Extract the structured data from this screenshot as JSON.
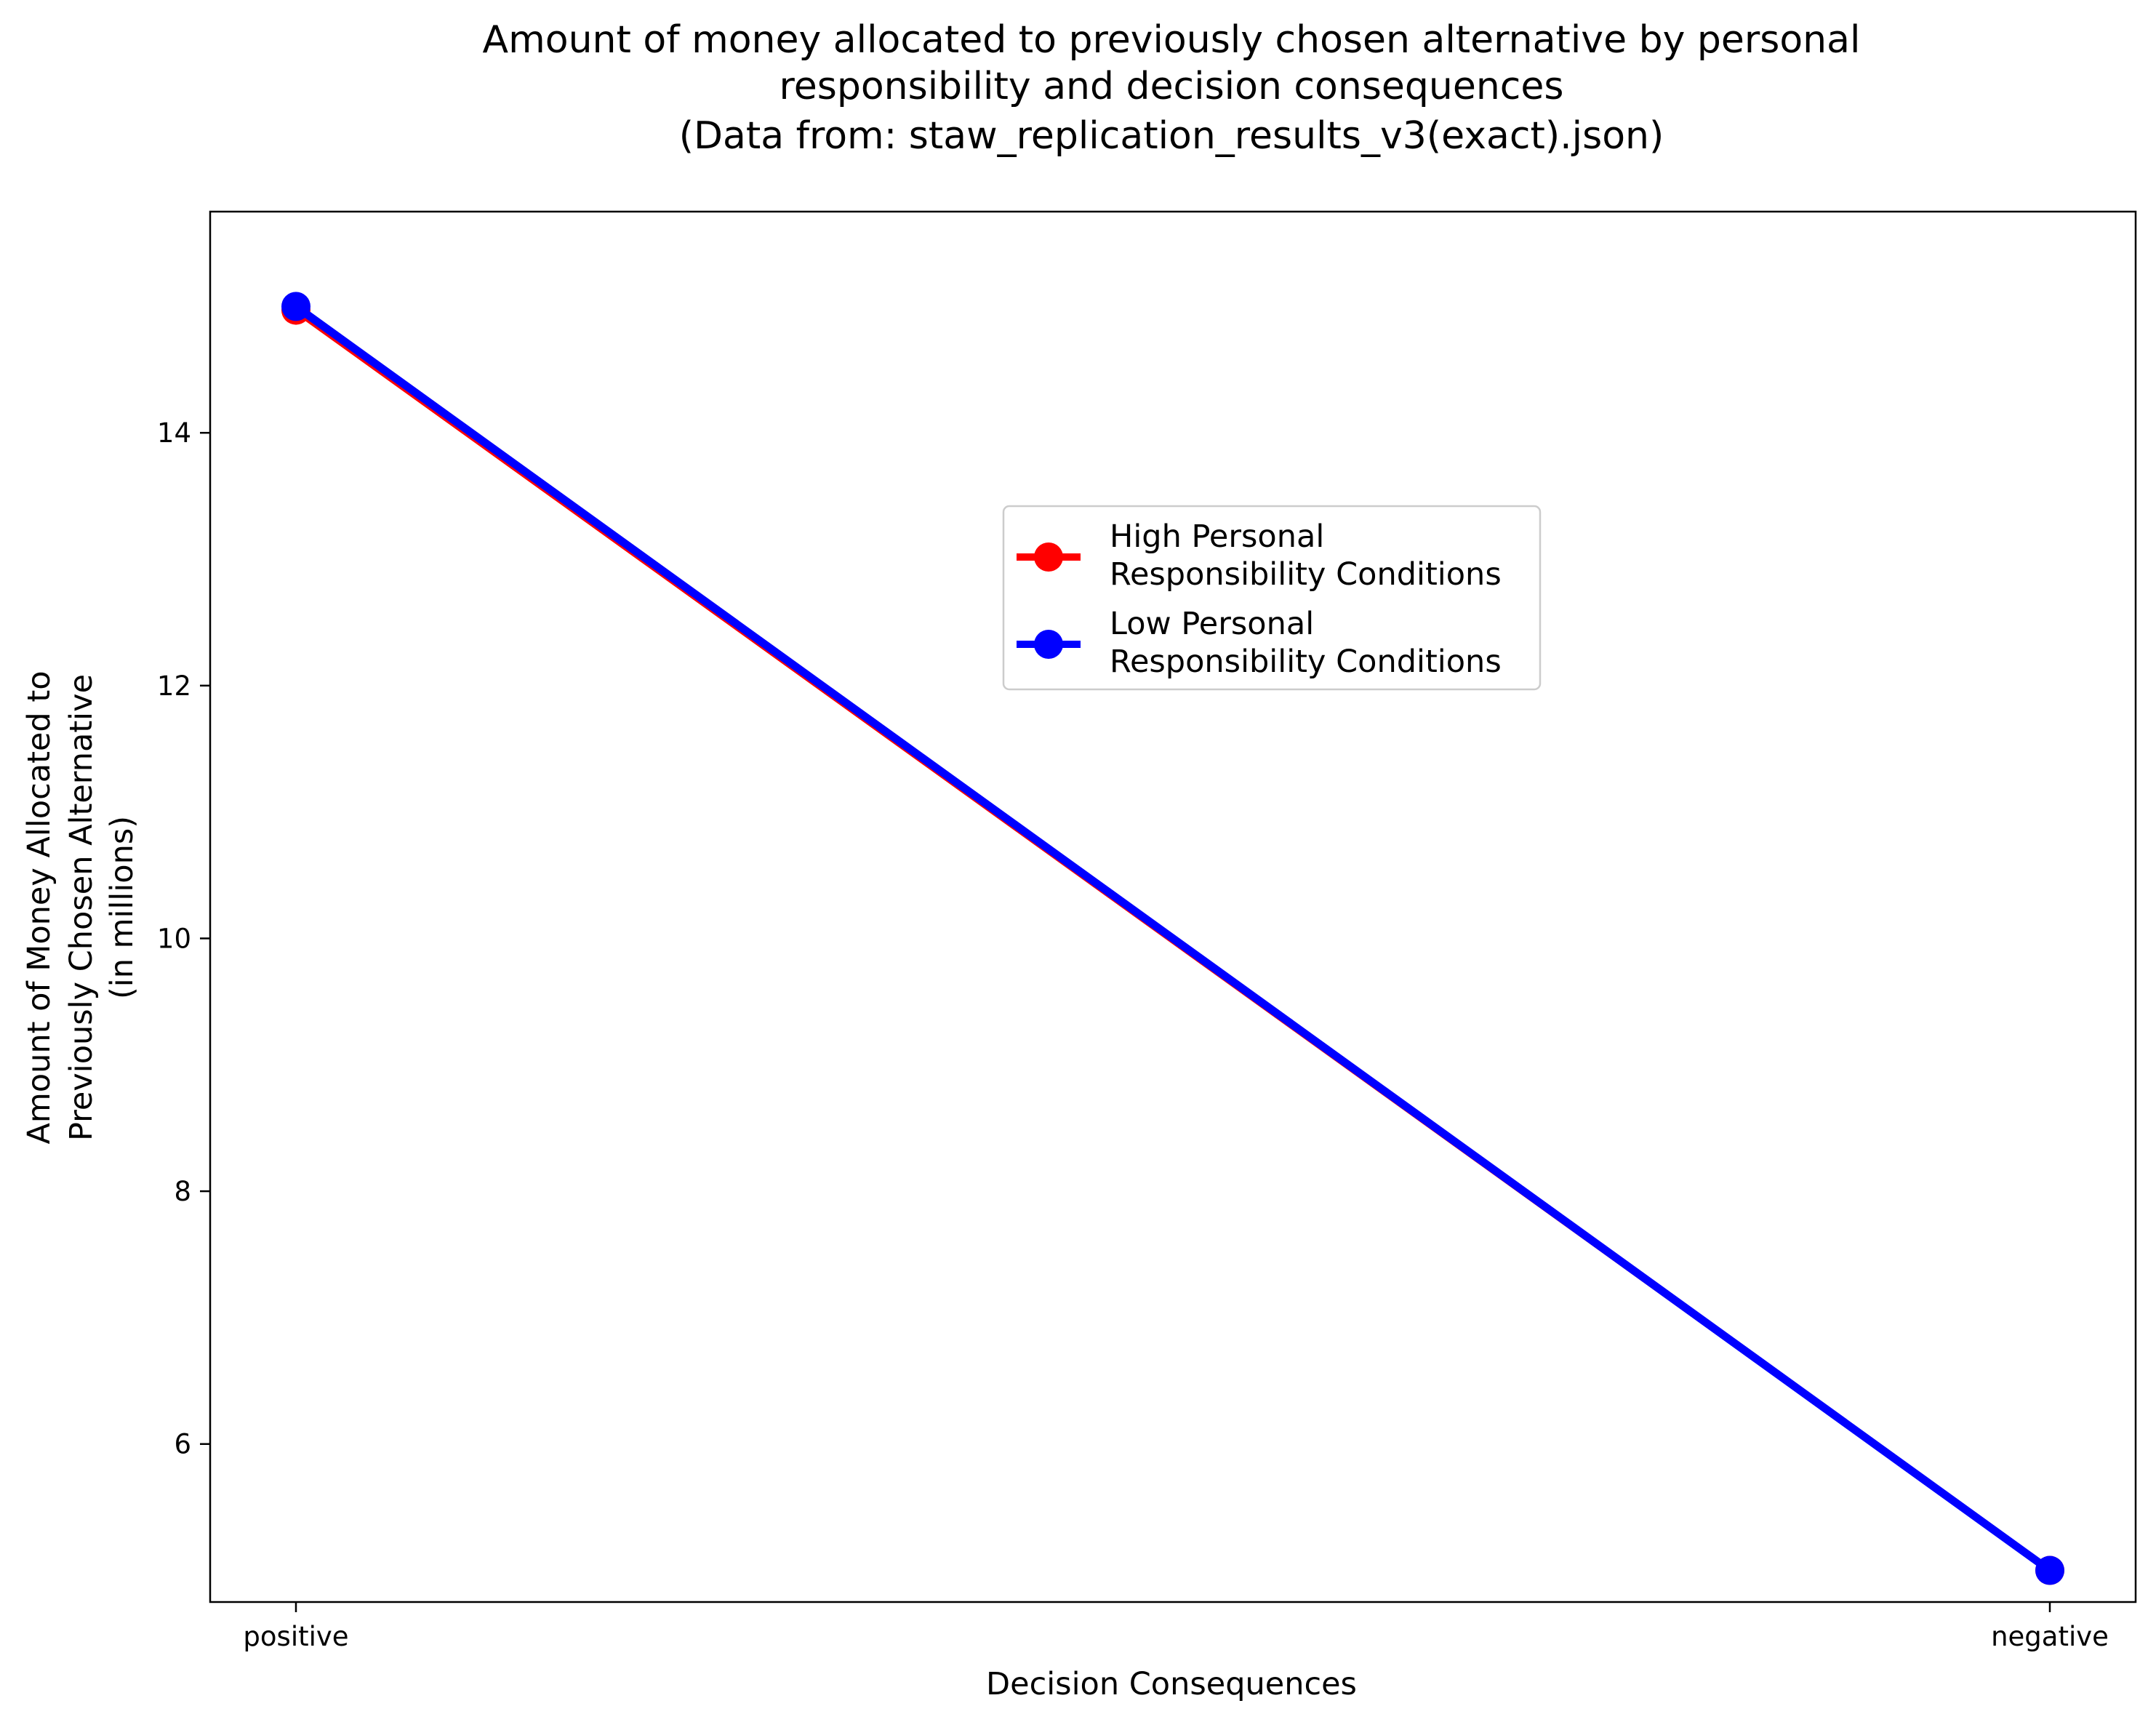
{
  "chart_data": {
    "type": "line",
    "title": [
      "Amount of money allocated to previously chosen alternative by personal",
      "responsibility and decision consequences",
      "(Data from: staw_replication_results_v3(exact).json)"
    ],
    "xlabel": "Decision Consequences",
    "ylabel": [
      "Amount of Money Allocated to",
      "Previously Chosen Alternative",
      "(in millions)"
    ],
    "categories": [
      "positive",
      "negative"
    ],
    "ylim": [
      4.75,
      15.75
    ],
    "yticks": [
      6,
      8,
      10,
      12,
      14
    ],
    "legend_position": "upper-center",
    "series": [
      {
        "name": [
          "High Personal",
          "Responsibility Conditions"
        ],
        "values": [
          14.97,
          5.0
        ],
        "color": "#ff0000"
      },
      {
        "name": [
          "Low Personal",
          "Responsibility Conditions"
        ],
        "values": [
          15.0,
          5.0
        ],
        "color": "#0000ff"
      }
    ]
  }
}
